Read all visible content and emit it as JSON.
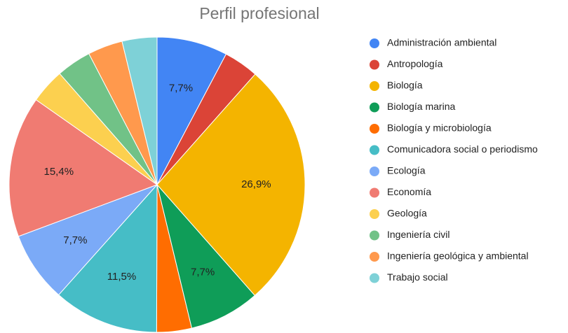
{
  "chart_data": {
    "type": "pie",
    "title": "Perfil profesional",
    "categories": [
      "Administración ambiental",
      "Antropología",
      "Biología",
      "Biología marina",
      "Biología y microbiología",
      "Comunicadora social o periodismo",
      "Ecología",
      "Economía",
      "Geología",
      "Ingeniería civil",
      "Ingeniería geológica y ambiental",
      "Trabajo social"
    ],
    "values": [
      7.7,
      3.8,
      26.9,
      7.7,
      3.8,
      11.5,
      7.7,
      15.4,
      3.8,
      3.8,
      3.8,
      3.8
    ],
    "value_labels": [
      "7,7%",
      null,
      "26,9%",
      "7,7%",
      null,
      "11,5%",
      "7,7%",
      "15,4%",
      null,
      null,
      null,
      null
    ],
    "colors": [
      "#4285f4",
      "#db4437",
      "#f4b400",
      "#0f9d58",
      "#ff6d01",
      "#46bdc6",
      "#7baaf7",
      "#f07b72",
      "#fcd04f",
      "#71c287",
      "#ff994d",
      "#7ed1d7"
    ],
    "legend": "right"
  }
}
